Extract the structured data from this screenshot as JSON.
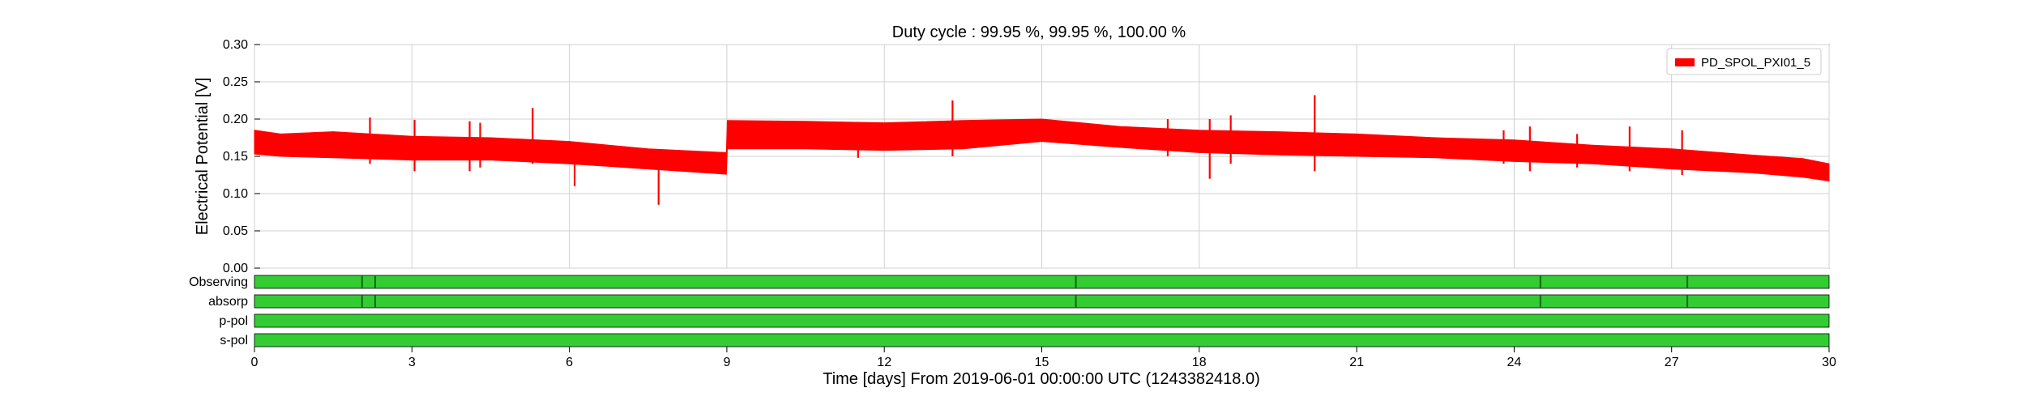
{
  "chart_data": [
    {
      "type": "line",
      "title": "Duty cycle : 99.95 %, 99.95 %, 100.00 %",
      "xlabel": "Time [days] From 2019-06-01 00:00:00 UTC (1243382418.0)",
      "ylabel": "Electrical Potential [V]",
      "xlim": [
        0,
        30
      ],
      "ylim": [
        0,
        0.3
      ],
      "x_ticks": [
        "0",
        "3",
        "6",
        "9",
        "12",
        "15",
        "18",
        "21",
        "24",
        "27",
        "30"
      ],
      "y_ticks": [
        "0.00",
        "0.05",
        "0.10",
        "0.15",
        "0.20",
        "0.25",
        "0.30"
      ],
      "grid": true,
      "legend_position": "top-right",
      "series": [
        {
          "name": "PD_SPOL_PXI01_5",
          "color": "#ff0000",
          "band": {
            "x": [
              0,
              0.5,
              1.5,
              3,
              4.5,
              6,
              7.5,
              8.99,
              9.01,
              10.5,
              12,
              13.5,
              15,
              16.5,
              18,
              19.5,
              21,
              22.5,
              24,
              25.5,
              27,
              28.5,
              29.5,
              30
            ],
            "y_upper": [
              0.185,
              0.18,
              0.183,
              0.177,
              0.175,
              0.17,
              0.16,
              0.155,
              0.198,
              0.197,
              0.195,
              0.198,
              0.2,
              0.19,
              0.185,
              0.183,
              0.18,
              0.175,
              0.172,
              0.165,
              0.16,
              0.152,
              0.147,
              0.14
            ],
            "y_lower": [
              0.153,
              0.15,
              0.148,
              0.145,
              0.145,
              0.14,
              0.133,
              0.126,
              0.16,
              0.16,
              0.158,
              0.16,
              0.17,
              0.162,
              0.155,
              0.152,
              0.15,
              0.148,
              0.143,
              0.14,
              0.133,
              0.128,
              0.122,
              0.117
            ]
          },
          "spikes": [
            {
              "x": 2.2,
              "y_min": 0.14,
              "y_max": 0.202
            },
            {
              "x": 3.05,
              "y_min": 0.13,
              "y_max": 0.199
            },
            {
              "x": 4.1,
              "y_min": 0.13,
              "y_max": 0.197
            },
            {
              "x": 4.3,
              "y_min": 0.135,
              "y_max": 0.195
            },
            {
              "x": 5.3,
              "y_min": 0.14,
              "y_max": 0.215
            },
            {
              "x": 6.1,
              "y_min": 0.11,
              "y_max": 0.16
            },
            {
              "x": 7.7,
              "y_min": 0.085,
              "y_max": 0.14
            },
            {
              "x": 11.5,
              "y_min": 0.148,
              "y_max": 0.195
            },
            {
              "x": 13.3,
              "y_min": 0.15,
              "y_max": 0.225
            },
            {
              "x": 17.4,
              "y_min": 0.15,
              "y_max": 0.2
            },
            {
              "x": 18.2,
              "y_min": 0.12,
              "y_max": 0.2
            },
            {
              "x": 18.6,
              "y_min": 0.14,
              "y_max": 0.205
            },
            {
              "x": 20.2,
              "y_min": 0.13,
              "y_max": 0.232
            },
            {
              "x": 23.8,
              "y_min": 0.14,
              "y_max": 0.185
            },
            {
              "x": 24.3,
              "y_min": 0.13,
              "y_max": 0.19
            },
            {
              "x": 25.2,
              "y_min": 0.135,
              "y_max": 0.18
            },
            {
              "x": 26.2,
              "y_min": 0.13,
              "y_max": 0.19
            },
            {
              "x": 27.2,
              "y_min": 0.125,
              "y_max": 0.185
            }
          ]
        }
      ]
    },
    {
      "type": "segments",
      "xlim": [
        0,
        30
      ],
      "on_color": "#33cc33",
      "gap_color": "#0a6e0a",
      "rows": [
        {
          "label": "Observing",
          "gaps": [
            2.05,
            2.3,
            15.65,
            24.5,
            27.3
          ]
        },
        {
          "label": "absorp",
          "gaps": [
            2.05,
            2.3,
            15.65,
            24.5,
            27.3
          ]
        },
        {
          "label": "p-pol",
          "gaps": []
        },
        {
          "label": "s-pol",
          "gaps": []
        }
      ]
    }
  ]
}
